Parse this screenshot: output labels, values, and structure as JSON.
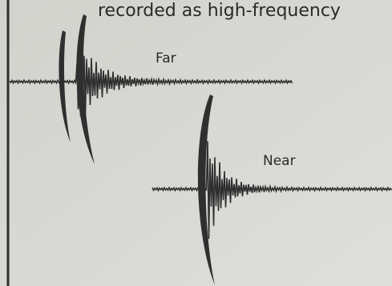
{
  "caption": "recorded as high-frequency",
  "labels": {
    "far": "Far",
    "near": "Near"
  }
}
